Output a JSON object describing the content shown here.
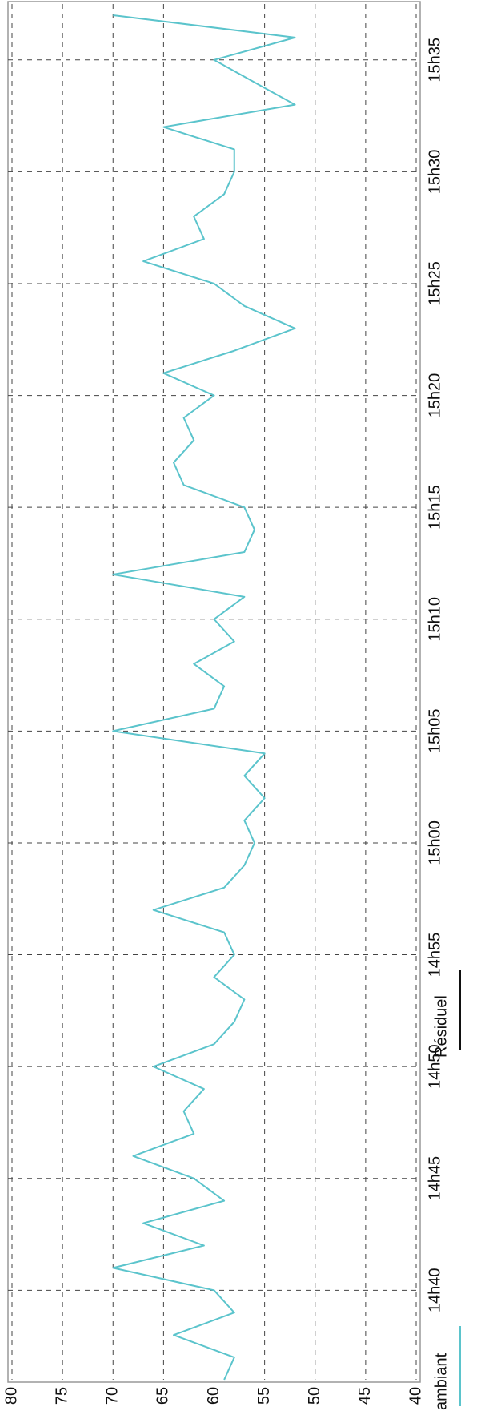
{
  "chart_data": {
    "type": "line",
    "x": [
      36,
      37,
      38,
      39,
      40,
      41,
      42,
      43,
      44,
      45,
      46,
      47,
      48,
      49,
      50,
      51,
      52,
      53,
      54,
      55,
      56,
      57,
      58,
      59,
      60,
      61,
      62,
      63,
      64,
      65,
      66,
      67,
      68,
      69,
      70,
      71,
      72,
      73,
      74,
      75,
      76,
      77,
      78,
      79,
      80,
      81,
      82,
      83,
      84,
      85,
      86,
      87,
      88,
      89,
      90,
      91,
      92,
      93,
      94,
      95,
      96,
      97
    ],
    "series": [
      {
        "name": "ambiant",
        "color": "#5bc4cc",
        "values": [
          59,
          58,
          64,
          58,
          60,
          70,
          61,
          67,
          59,
          62,
          68,
          62,
          63,
          61,
          66,
          60,
          58,
          57,
          60,
          58,
          59,
          66,
          59,
          57,
          56,
          57,
          55,
          57,
          55,
          70,
          60,
          59,
          62,
          58,
          60,
          57,
          70,
          57,
          56,
          57,
          63,
          64,
          62,
          63,
          60,
          65,
          58,
          52,
          57,
          60,
          67,
          61,
          62,
          59,
          58,
          58,
          65,
          52,
          56,
          60,
          52,
          70
        ]
      },
      {
        "name": "Résiduel",
        "color": "#111111",
        "values": [
          null,
          null,
          null,
          null,
          null,
          null,
          null,
          null,
          null,
          null,
          null,
          null,
          null,
          null,
          null,
          null,
          null,
          null,
          null,
          null,
          null,
          null,
          null,
          null,
          null,
          null,
          null,
          null,
          null,
          null,
          null,
          null,
          null,
          null,
          null,
          null,
          null,
          null,
          null,
          null,
          null,
          null,
          null,
          null,
          null,
          null,
          null,
          null,
          null,
          null,
          null,
          null,
          null,
          null,
          null,
          null,
          null,
          null,
          null,
          null,
          null,
          null
        ]
      }
    ],
    "xlim": [
      36,
      97.5
    ],
    "xticks": [
      {
        "value": 40,
        "label": "14h40"
      },
      {
        "value": 45,
        "label": "14h45"
      },
      {
        "value": 50,
        "label": "14h50"
      },
      {
        "value": 55,
        "label": "14h55"
      },
      {
        "value": 60,
        "label": "15h00"
      },
      {
        "value": 65,
        "label": "15h05"
      },
      {
        "value": 70,
        "label": "15h10"
      },
      {
        "value": 75,
        "label": "15h15"
      },
      {
        "value": 80,
        "label": "15h20"
      },
      {
        "value": 85,
        "label": "15h25"
      },
      {
        "value": 90,
        "label": "15h30"
      },
      {
        "value": 95,
        "label": "15h35"
      }
    ],
    "ylim": [
      40,
      80
    ],
    "yticks": [
      40,
      45,
      50,
      55,
      60,
      65,
      70,
      75,
      80
    ],
    "grid": true
  }
}
